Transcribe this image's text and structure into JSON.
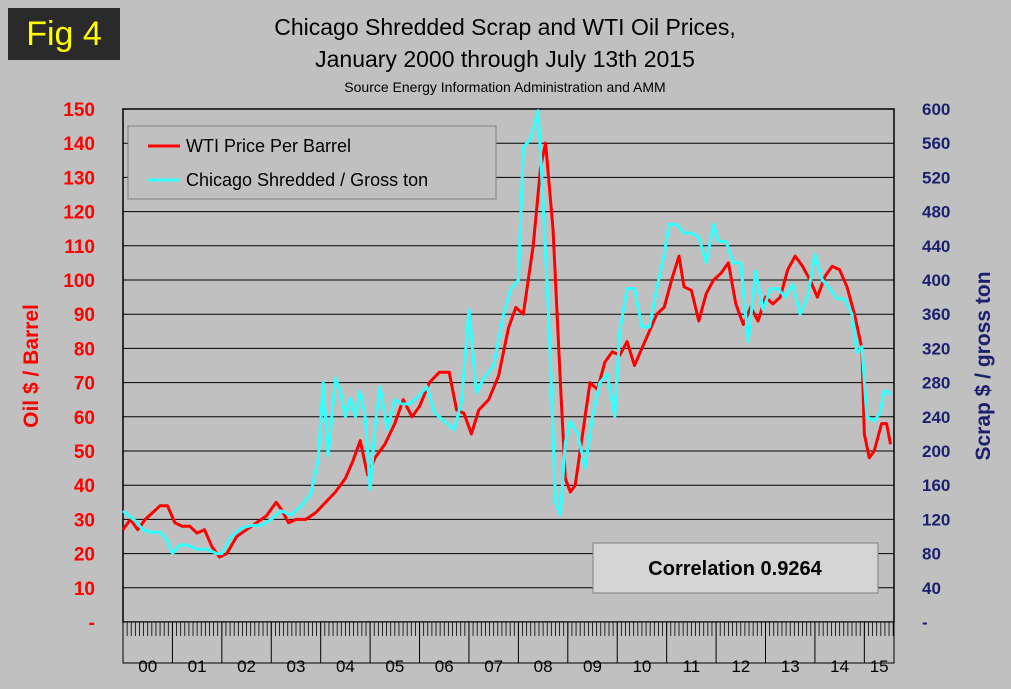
{
  "badge": "Fig 4",
  "chart_data": {
    "type": "line",
    "title": "Chicago Shredded Scrap and WTI Oil Prices,",
    "title_line2": "January 2000 through July 13th 2015",
    "subtitle": "Source Energy Information Administration and AMM",
    "ylabel_left": "Oil $ / Barrel",
    "ylabel_right": "Scrap $ / gross ton",
    "ylim_left": [
      0,
      150
    ],
    "ylim_right": [
      0,
      600
    ],
    "yticks_left": [
      "-",
      "10",
      "20",
      "30",
      "40",
      "50",
      "60",
      "70",
      "80",
      "90",
      "100",
      "110",
      "120",
      "130",
      "140",
      "150"
    ],
    "yticks_right": [
      "-",
      "40",
      "80",
      "120",
      "160",
      "200",
      "240",
      "280",
      "320",
      "360",
      "400",
      "440",
      "480",
      "520",
      "560",
      "600"
    ],
    "categories": [
      "00",
      "01",
      "02",
      "03",
      "04",
      "05",
      "06",
      "07",
      "08",
      "09",
      "10",
      "11",
      "12",
      "13",
      "14",
      "15"
    ],
    "x_range": [
      2000.0,
      2015.6
    ],
    "grid": true,
    "legend": [
      "WTI Price Per Barrel",
      "Chicago Shredded / Gross ton"
    ],
    "legend_position": "top-left",
    "annotation": "Correlation 0.9264",
    "series": [
      {
        "name": "WTI Price Per Barrel",
        "axis": "left",
        "color": "#ff0000",
        "x": [
          2000.0,
          2000.15,
          2000.3,
          2000.45,
          2000.6,
          2000.75,
          2000.9,
          2001.05,
          2001.2,
          2001.35,
          2001.5,
          2001.65,
          2001.8,
          2001.95,
          2002.1,
          2002.3,
          2002.5,
          2002.7,
          2002.9,
          2003.1,
          2003.2,
          2003.35,
          2003.5,
          2003.7,
          2003.9,
          2004.1,
          2004.3,
          2004.5,
          2004.65,
          2004.8,
          2004.95,
          2005.1,
          2005.3,
          2005.5,
          2005.67,
          2005.85,
          2006.0,
          2006.2,
          2006.4,
          2006.6,
          2006.75,
          2006.9,
          2007.05,
          2007.2,
          2007.4,
          2007.6,
          2007.8,
          2007.95,
          2008.1,
          2008.3,
          2008.45,
          2008.55,
          2008.7,
          2008.85,
          2008.95,
          2009.05,
          2009.15,
          2009.3,
          2009.45,
          2009.6,
          2009.75,
          2009.9,
          2010.05,
          2010.2,
          2010.35,
          2010.5,
          2010.65,
          2010.8,
          2010.95,
          2011.1,
          2011.25,
          2011.35,
          2011.5,
          2011.65,
          2011.8,
          2011.95,
          2012.1,
          2012.25,
          2012.4,
          2012.55,
          2012.7,
          2012.85,
          2013.0,
          2013.15,
          2013.3,
          2013.45,
          2013.6,
          2013.75,
          2013.9,
          2014.05,
          2014.2,
          2014.35,
          2014.5,
          2014.65,
          2014.8,
          2014.95,
          2015.0,
          2015.1,
          2015.2,
          2015.35,
          2015.45,
          2015.53
        ],
        "values": [
          27,
          30,
          27,
          30,
          32,
          34,
          34,
          29,
          28,
          28,
          26,
          27,
          22,
          19,
          20,
          25,
          27,
          29,
          31,
          35,
          33,
          29,
          30,
          30,
          32,
          35,
          38,
          42,
          47,
          53,
          43,
          48,
          52,
          58,
          65,
          60,
          63,
          70,
          73,
          73,
          62,
          61,
          55,
          62,
          65,
          72,
          86,
          92,
          90,
          110,
          133,
          140,
          115,
          70,
          42,
          38,
          40,
          55,
          70,
          68,
          76,
          79,
          78,
          82,
          75,
          80,
          85,
          90,
          92,
          100,
          107,
          98,
          97,
          88,
          96,
          100,
          102,
          105,
          93,
          87,
          92,
          88,
          95,
          93,
          95,
          103,
          107,
          104,
          100,
          95,
          101,
          104,
          103,
          98,
          90,
          80,
          55,
          48,
          50,
          58,
          58,
          52
        ]
      },
      {
        "name": "Chicago Shredded / Gross ton",
        "axis": "right",
        "color": "#33ffff",
        "x": [
          2000.0,
          2000.1,
          2000.25,
          2000.4,
          2000.55,
          2000.75,
          2000.9,
          2001.0,
          2001.15,
          2001.3,
          2001.5,
          2001.7,
          2001.9,
          2002.0,
          2002.2,
          2002.4,
          2002.6,
          2002.8,
          2003.0,
          2003.2,
          2003.4,
          2003.6,
          2003.8,
          2003.95,
          2004.05,
          2004.15,
          2004.3,
          2004.4,
          2004.5,
          2004.6,
          2004.7,
          2004.8,
          2004.9,
          2005.0,
          2005.1,
          2005.2,
          2005.35,
          2005.5,
          2005.65,
          2005.8,
          2006.0,
          2006.15,
          2006.3,
          2006.5,
          2006.7,
          2006.85,
          2007.0,
          2007.15,
          2007.3,
          2007.5,
          2007.7,
          2007.85,
          2008.0,
          2008.1,
          2008.25,
          2008.4,
          2008.5,
          2008.62,
          2008.75,
          2008.85,
          2008.95,
          2009.05,
          2009.2,
          2009.35,
          2009.5,
          2009.65,
          2009.8,
          2009.95,
          2010.05,
          2010.2,
          2010.35,
          2010.5,
          2010.65,
          2010.8,
          2010.95,
          2011.05,
          2011.2,
          2011.35,
          2011.5,
          2011.65,
          2011.8,
          2011.95,
          2012.05,
          2012.2,
          2012.35,
          2012.5,
          2012.65,
          2012.8,
          2012.95,
          2013.1,
          2013.25,
          2013.4,
          2013.55,
          2013.7,
          2013.85,
          2014.0,
          2014.15,
          2014.3,
          2014.45,
          2014.6,
          2014.75,
          2014.85,
          2014.95,
          2015.05,
          2015.2,
          2015.32,
          2015.4,
          2015.47,
          2015.53
        ],
        "values": [
          130,
          125,
          118,
          108,
          105,
          105,
          95,
          80,
          90,
          90,
          85,
          85,
          80,
          80,
          100,
          110,
          113,
          113,
          120,
          130,
          125,
          135,
          150,
          190,
          280,
          195,
          285,
          270,
          240,
          262,
          240,
          270,
          240,
          155,
          230,
          275,
          225,
          260,
          255,
          255,
          265,
          275,
          245,
          235,
          225,
          258,
          365,
          268,
          285,
          300,
          360,
          390,
          400,
          555,
          565,
          598,
          490,
          350,
          140,
          125,
          210,
          235,
          220,
          180,
          240,
          280,
          290,
          240,
          340,
          390,
          390,
          345,
          345,
          390,
          430,
          465,
          465,
          455,
          455,
          450,
          420,
          465,
          445,
          445,
          420,
          420,
          328,
          410,
          365,
          390,
          390,
          380,
          395,
          360,
          380,
          430,
          400,
          390,
          378,
          378,
          360,
          315,
          322,
          240,
          235,
          245,
          270,
          270,
          265
        ]
      }
    ]
  }
}
